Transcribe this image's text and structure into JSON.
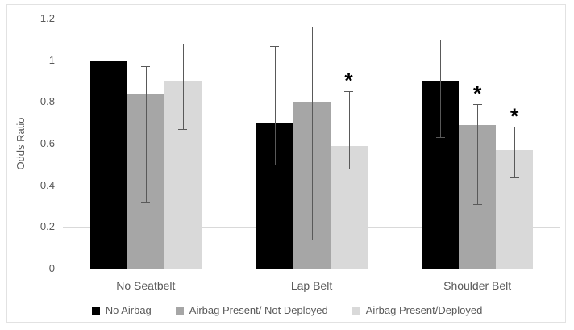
{
  "chart_data": {
    "type": "bar",
    "title": "",
    "xlabel": "",
    "ylabel": "Odds Ratio",
    "categories": [
      "No Seatbelt",
      "Lap Belt",
      "Shoulder Belt"
    ],
    "series": [
      {
        "name": "No Airbag",
        "color": "#000000",
        "values": [
          1.0,
          0.7,
          0.9
        ],
        "error_low": [
          null,
          0.5,
          0.63
        ],
        "error_high": [
          null,
          1.07,
          1.1
        ],
        "significant": [
          false,
          false,
          false
        ]
      },
      {
        "name": "Airbag Present/ Not Deployed",
        "color": "#a6a6a6",
        "values": [
          0.84,
          0.8,
          0.69
        ],
        "error_low": [
          0.32,
          0.14,
          0.31
        ],
        "error_high": [
          0.97,
          1.16,
          0.79
        ],
        "significant": [
          false,
          false,
          true
        ]
      },
      {
        "name": "Airbag Present/Deployed",
        "color": "#d9d9d9",
        "values": [
          0.9,
          0.59,
          0.57
        ],
        "error_low": [
          0.67,
          0.48,
          0.44
        ],
        "error_high": [
          1.08,
          0.85,
          0.68
        ],
        "significant": [
          false,
          true,
          true
        ]
      }
    ],
    "yticks": [
      0,
      0.2,
      0.4,
      0.6,
      0.8,
      1,
      1.2
    ],
    "ytick_labels": [
      "0",
      "0.2",
      "0.4",
      "0.6",
      "0.8",
      "1",
      "1.2"
    ],
    "ylim": [
      0,
      1.2
    ],
    "grid": true,
    "error_bars": true,
    "legend_position": "bottom",
    "significance_marker": "*"
  },
  "colors": {
    "gridline": "#d9d9d9",
    "axis_text": "#595959",
    "error_bar": "#595959",
    "frame_border": "#e2e2e2",
    "background": "#ffffff"
  }
}
